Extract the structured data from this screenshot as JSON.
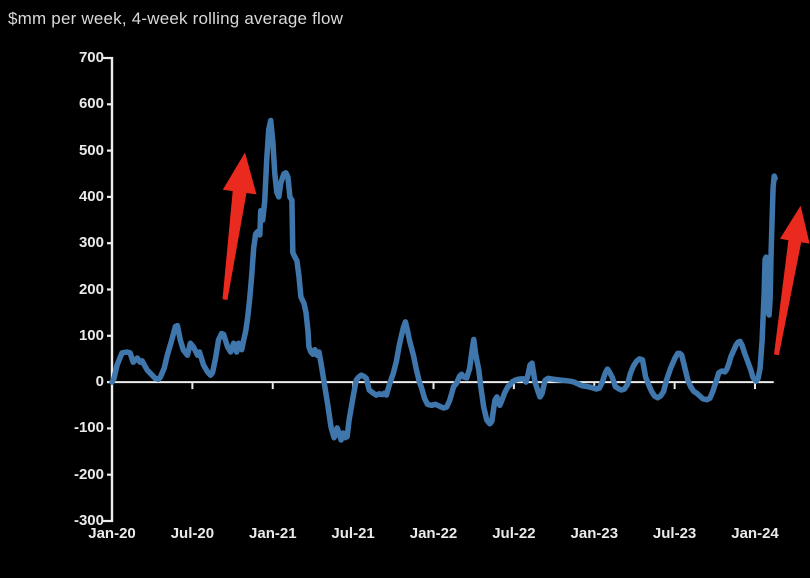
{
  "title": "$mm per week, 4-week rolling average flow",
  "colors": {
    "background": "#000000",
    "line": "#3f77ad",
    "arrow": "#ea2a1f",
    "axis": "#ececec",
    "tick_label": "#eaeaea",
    "title_text": "#d9d9d9"
  },
  "chart_data": {
    "type": "line",
    "title": "$mm per week, 4-week rolling average flow",
    "xlabel": "",
    "ylabel": "",
    "x_unit": "months since Jan-2020",
    "ylim": [
      -300,
      700
    ],
    "grid": false,
    "legend": false,
    "zero_baseline": true,
    "yticks": [
      700,
      600,
      500,
      400,
      300,
      200,
      100,
      0,
      -100,
      -200,
      -300
    ],
    "xticks": [
      {
        "label": "Jan-20",
        "month": 0
      },
      {
        "label": "Jul-20",
        "month": 6
      },
      {
        "label": "Jan-21",
        "month": 12
      },
      {
        "label": "Jul-21",
        "month": 18
      },
      {
        "label": "Jan-22",
        "month": 24
      },
      {
        "label": "Jul-22",
        "month": 30
      },
      {
        "label": "Jan-23",
        "month": 36
      },
      {
        "label": "Jul-23",
        "month": 42
      },
      {
        "label": "Jan-24",
        "month": 48
      }
    ],
    "series": [
      {
        "name": "4-week rolling average flow ($mm per week)",
        "points": [
          [
            0,
            0
          ],
          [
            0.15,
            8
          ],
          [
            0.38,
            37
          ],
          [
            0.75,
            63
          ],
          [
            1.13,
            65
          ],
          [
            1.35,
            63
          ],
          [
            1.58,
            43
          ],
          [
            1.88,
            52
          ],
          [
            2.1,
            43
          ],
          [
            2.25,
            46
          ],
          [
            2.63,
            26
          ],
          [
            3.0,
            15
          ],
          [
            3.23,
            8
          ],
          [
            3.45,
            6
          ],
          [
            3.6,
            10
          ],
          [
            3.9,
            30
          ],
          [
            4.13,
            58
          ],
          [
            4.5,
            95
          ],
          [
            4.73,
            120
          ],
          [
            4.88,
            122
          ],
          [
            5.1,
            91
          ],
          [
            5.33,
            69
          ],
          [
            5.63,
            58
          ],
          [
            5.85,
            84
          ],
          [
            6.08,
            76
          ],
          [
            6.38,
            58
          ],
          [
            6.53,
            65
          ],
          [
            6.83,
            37
          ],
          [
            7.13,
            22
          ],
          [
            7.35,
            15
          ],
          [
            7.5,
            20
          ],
          [
            7.73,
            52
          ],
          [
            7.95,
            91
          ],
          [
            8.18,
            105
          ],
          [
            8.33,
            103
          ],
          [
            8.63,
            76
          ],
          [
            8.85,
            65
          ],
          [
            9.08,
            84
          ],
          [
            9.3,
            65
          ],
          [
            9.45,
            84
          ],
          [
            9.68,
            70
          ],
          [
            9.83,
            91
          ],
          [
            9.98,
            110
          ],
          [
            10.13,
            140
          ],
          [
            10.28,
            180
          ],
          [
            10.43,
            230
          ],
          [
            10.58,
            290
          ],
          [
            10.73,
            320
          ],
          [
            10.88,
            325
          ],
          [
            11.03,
            318
          ],
          [
            11.1,
            370
          ],
          [
            11.25,
            350
          ],
          [
            11.4,
            390
          ],
          [
            11.55,
            480
          ],
          [
            11.7,
            545
          ],
          [
            11.85,
            565
          ],
          [
            12.0,
            520
          ],
          [
            12.15,
            450
          ],
          [
            12.3,
            410
          ],
          [
            12.45,
            400
          ],
          [
            12.6,
            430
          ],
          [
            12.83,
            450
          ],
          [
            12.98,
            452
          ],
          [
            13.13,
            443
          ],
          [
            13.28,
            400
          ],
          [
            13.43,
            393
          ],
          [
            13.5,
            280
          ],
          [
            13.65,
            270
          ],
          [
            13.8,
            262
          ],
          [
            13.95,
            230
          ],
          [
            14.1,
            184
          ],
          [
            14.33,
            170
          ],
          [
            14.48,
            150
          ],
          [
            14.63,
            110
          ],
          [
            14.7,
            76
          ],
          [
            14.85,
            65
          ],
          [
            15.0,
            60
          ],
          [
            15.15,
            70
          ],
          [
            15.3,
            58
          ],
          [
            15.45,
            65
          ],
          [
            15.6,
            41
          ],
          [
            15.83,
            0
          ],
          [
            16.13,
            -54
          ],
          [
            16.35,
            -97
          ],
          [
            16.58,
            -120
          ],
          [
            16.8,
            -99
          ],
          [
            16.95,
            -110
          ],
          [
            17.1,
            -125
          ],
          [
            17.25,
            -110
          ],
          [
            17.4,
            -120
          ],
          [
            17.55,
            -118
          ],
          [
            17.7,
            -82
          ],
          [
            18.0,
            -32
          ],
          [
            18.23,
            4
          ],
          [
            18.38,
            10
          ],
          [
            18.6,
            15
          ],
          [
            18.83,
            12
          ],
          [
            18.98,
            8
          ],
          [
            19.2,
            -17
          ],
          [
            19.5,
            -24
          ],
          [
            19.73,
            -28
          ],
          [
            19.95,
            -25
          ],
          [
            20.18,
            -27
          ],
          [
            20.33,
            -24
          ],
          [
            20.48,
            -28
          ],
          [
            20.7,
            -6
          ],
          [
            21.0,
            19
          ],
          [
            21.23,
            45
          ],
          [
            21.45,
            80
          ],
          [
            21.6,
            100
          ],
          [
            21.75,
            118
          ],
          [
            21.9,
            130
          ],
          [
            22.05,
            112
          ],
          [
            22.2,
            91
          ],
          [
            22.5,
            58
          ],
          [
            22.73,
            26
          ],
          [
            22.95,
            0
          ],
          [
            23.1,
            -11
          ],
          [
            23.33,
            -35
          ],
          [
            23.55,
            -48
          ],
          [
            23.85,
            -50
          ],
          [
            24.15,
            -48
          ],
          [
            24.45,
            -52
          ],
          [
            24.75,
            -56
          ],
          [
            24.98,
            -54
          ],
          [
            25.2,
            -40
          ],
          [
            25.5,
            -10
          ],
          [
            25.73,
            -2
          ],
          [
            25.95,
            13
          ],
          [
            26.1,
            17
          ],
          [
            26.25,
            11
          ],
          [
            26.48,
            9
          ],
          [
            26.7,
            30
          ],
          [
            26.85,
            63
          ],
          [
            27.0,
            92
          ],
          [
            27.15,
            60
          ],
          [
            27.38,
            26
          ],
          [
            27.53,
            -10
          ],
          [
            27.75,
            -54
          ],
          [
            27.98,
            -82
          ],
          [
            28.2,
            -90
          ],
          [
            28.35,
            -85
          ],
          [
            28.58,
            -39
          ],
          [
            28.73,
            -32
          ],
          [
            28.95,
            -50
          ],
          [
            29.1,
            -40
          ],
          [
            29.33,
            -22
          ],
          [
            29.55,
            -10
          ],
          [
            29.7,
            -6
          ],
          [
            29.85,
            0
          ],
          [
            30.08,
            4
          ],
          [
            30.3,
            6
          ],
          [
            30.53,
            7
          ],
          [
            30.75,
            7
          ],
          [
            30.9,
            0
          ],
          [
            31.05,
            15
          ],
          [
            31.2,
            37
          ],
          [
            31.35,
            41
          ],
          [
            31.58,
            0
          ],
          [
            31.8,
            -20
          ],
          [
            31.95,
            -32
          ],
          [
            32.1,
            -25
          ],
          [
            32.33,
            4
          ],
          [
            32.55,
            8
          ],
          [
            32.78,
            7
          ],
          [
            33.0,
            6
          ],
          [
            33.3,
            5
          ],
          [
            33.6,
            4
          ],
          [
            33.9,
            3
          ],
          [
            34.2,
            2
          ],
          [
            34.5,
            0
          ],
          [
            34.8,
            -4
          ],
          [
            35.1,
            -8
          ],
          [
            35.4,
            -9
          ],
          [
            35.7,
            -11
          ],
          [
            35.93,
            -13
          ],
          [
            36.15,
            -15
          ],
          [
            36.38,
            -13
          ],
          [
            36.6,
            0
          ],
          [
            36.83,
            20
          ],
          [
            36.98,
            28
          ],
          [
            37.13,
            22
          ],
          [
            37.35,
            10
          ],
          [
            37.58,
            -10
          ],
          [
            37.8,
            -14
          ],
          [
            38.03,
            -17
          ],
          [
            38.25,
            -15
          ],
          [
            38.48,
            -5
          ],
          [
            38.7,
            19
          ],
          [
            38.93,
            35
          ],
          [
            39.15,
            45
          ],
          [
            39.38,
            50
          ],
          [
            39.6,
            48
          ],
          [
            39.83,
            11
          ],
          [
            40.05,
            -5
          ],
          [
            40.28,
            -20
          ],
          [
            40.5,
            -30
          ],
          [
            40.73,
            -34
          ],
          [
            40.95,
            -30
          ],
          [
            41.18,
            -20
          ],
          [
            41.4,
            5
          ],
          [
            41.7,
            30
          ],
          [
            42.0,
            50
          ],
          [
            42.23,
            62
          ],
          [
            42.38,
            62
          ],
          [
            42.53,
            58
          ],
          [
            42.75,
            32
          ],
          [
            42.98,
            4
          ],
          [
            43.2,
            -10
          ],
          [
            43.43,
            -20
          ],
          [
            43.65,
            -24
          ],
          [
            43.88,
            -30
          ],
          [
            44.1,
            -36
          ],
          [
            44.4,
            -38
          ],
          [
            44.63,
            -35
          ],
          [
            44.85,
            -20
          ],
          [
            45.08,
            0
          ],
          [
            45.3,
            20
          ],
          [
            45.53,
            24
          ],
          [
            45.75,
            22
          ],
          [
            45.9,
            28
          ],
          [
            46.05,
            40
          ],
          [
            46.2,
            55
          ],
          [
            46.43,
            70
          ],
          [
            46.58,
            80
          ],
          [
            46.73,
            86
          ],
          [
            46.88,
            88
          ],
          [
            47.03,
            80
          ],
          [
            47.25,
            60
          ],
          [
            47.48,
            43
          ],
          [
            47.7,
            25
          ],
          [
            47.85,
            10
          ],
          [
            48.08,
            2
          ],
          [
            48.23,
            8
          ],
          [
            48.38,
            30
          ],
          [
            48.53,
            90
          ],
          [
            48.68,
            190
          ],
          [
            48.75,
            265
          ],
          [
            48.83,
            270
          ],
          [
            48.9,
            230
          ],
          [
            48.98,
            155
          ],
          [
            49.05,
            145
          ],
          [
            49.13,
            180
          ],
          [
            49.2,
            280
          ],
          [
            49.28,
            360
          ],
          [
            49.35,
            420
          ],
          [
            49.43,
            445
          ],
          [
            49.5,
            440
          ]
        ]
      }
    ],
    "annotations": [
      {
        "type": "arrow",
        "name": "surge-arrow-2020",
        "from": [
          8.43,
          178
        ],
        "to": [
          9.93,
          496
        ]
      },
      {
        "type": "arrow",
        "name": "surge-arrow-2024",
        "from": [
          49.6,
          59
        ],
        "to": [
          51.4,
          381
        ]
      }
    ]
  }
}
